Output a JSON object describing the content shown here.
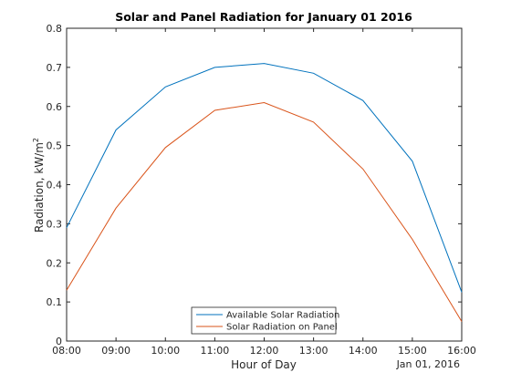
{
  "chart_data": {
    "type": "line",
    "title": "Solar and Panel Radiation for January 01 2016",
    "xlabel": "Hour of Day",
    "ylabel": "Radiation, kW/m",
    "ylabel_superscript": "2",
    "date_label": "Jan 01, 2016",
    "x": [
      "08:00",
      "09:00",
      "10:00",
      "11:00",
      "12:00",
      "13:00",
      "14:00",
      "15:00",
      "16:00"
    ],
    "x_ticks": [
      "08:00",
      "09:00",
      "10:00",
      "11:00",
      "12:00",
      "13:00",
      "14:00",
      "15:00",
      "16:00"
    ],
    "ylim": [
      0,
      0.8
    ],
    "y_ticks": [
      "0",
      "0.1",
      "0.2",
      "0.3",
      "0.4",
      "0.5",
      "0.6",
      "0.7",
      "0.8"
    ],
    "grid": false,
    "legend_position": "bottom-center",
    "series": [
      {
        "name": "Available Solar Radiation",
        "color": "#0072bd",
        "values": [
          0.29,
          0.54,
          0.65,
          0.7,
          0.71,
          0.685,
          0.615,
          0.46,
          0.125
        ]
      },
      {
        "name": "Solar Radiation on Panel",
        "color": "#d95319",
        "values": [
          0.13,
          0.34,
          0.495,
          0.59,
          0.61,
          0.56,
          0.44,
          0.26,
          0.05
        ]
      }
    ]
  }
}
